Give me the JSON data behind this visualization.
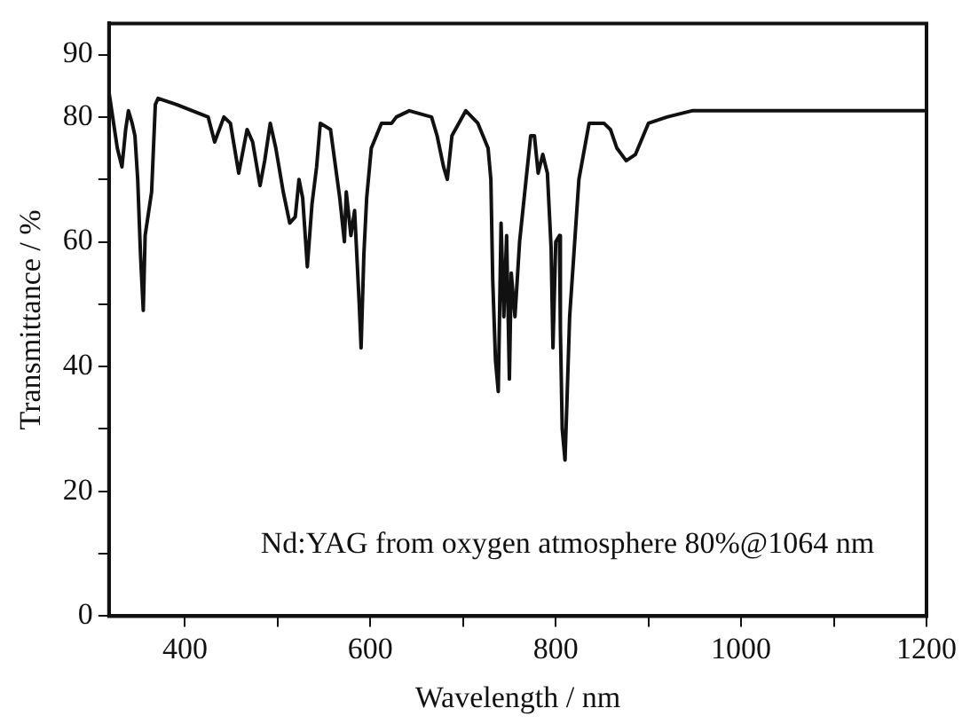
{
  "chart_data": {
    "type": "line",
    "xlabel": "Wavelength / nm",
    "ylabel": "Transmittance / %",
    "annotations": [
      "Nd:YAG from oxygen atmosphere 80%@1064 nm"
    ],
    "xlim": [
      318,
      1200
    ],
    "xticks": [
      400,
      {
        "value": 500,
        "label": null
      },
      600,
      {
        "value": 700,
        "label": null
      },
      800,
      {
        "value": 900,
        "label": null
      },
      1000,
      {
        "value": 1100,
        "label": null
      },
      1200
    ],
    "ylim": [
      0,
      95
    ],
    "yticks": [
      0,
      {
        "value": 10,
        "label": null
      },
      20,
      {
        "value": 30,
        "label": null
      },
      40,
      {
        "value": 50,
        "label": null
      },
      60,
      {
        "value": 70,
        "label": null
      },
      80,
      90
    ],
    "grid": false,
    "legend": false,
    "marker": "none",
    "line_style": "solid",
    "series": [
      {
        "color": "#111111",
        "x": [
          318,
          322,
          327,
          332,
          336,
          339,
          343,
          346,
          349,
          352,
          355,
          357,
          361,
          364,
          368,
          371,
          391,
          425,
          432,
          442,
          449,
          458,
          467,
          473,
          481,
          486,
          492,
          498,
          506,
          513,
          519,
          523,
          527,
          532,
          537,
          542,
          546,
          557,
          567,
          572,
          574,
          579,
          583,
          588,
          590,
          593,
          596,
          601,
          612,
          623,
          628,
          642,
          666,
          672,
          679,
          683,
          688,
          703,
          716,
          727,
          730,
          732,
          735,
          738,
          741,
          744,
          747,
          750,
          752,
          756,
          761,
          768,
          773,
          777,
          781,
          786,
          791,
          795,
          797,
          800,
          804,
          805,
          807,
          810,
          812,
          815,
          820,
          825,
          836,
          852,
          859,
          866,
          876,
          886,
          900,
          920,
          947,
          1076,
          1200
        ],
        "values": [
          84,
          80,
          75,
          72,
          78,
          81,
          79,
          77,
          70,
          58,
          49,
          61,
          65,
          68,
          82,
          83,
          82,
          80,
          76,
          80,
          79,
          71,
          78,
          76,
          69,
          73,
          79,
          75,
          68,
          63,
          64,
          70,
          67,
          56,
          66,
          72,
          79,
          78,
          67,
          60,
          68,
          61,
          65,
          50,
          43,
          58,
          67,
          75,
          79,
          79,
          80,
          81,
          80,
          77,
          72,
          70,
          77,
          81,
          79,
          75,
          70,
          54,
          41,
          36,
          63,
          48,
          61,
          38,
          55,
          48,
          60,
          70,
          77,
          77,
          71,
          74,
          71,
          59,
          43,
          60,
          61,
          46,
          30,
          25,
          34,
          48,
          59,
          70,
          79,
          79,
          78,
          75,
          73,
          74,
          79,
          80,
          81,
          81,
          81
        ]
      }
    ]
  }
}
